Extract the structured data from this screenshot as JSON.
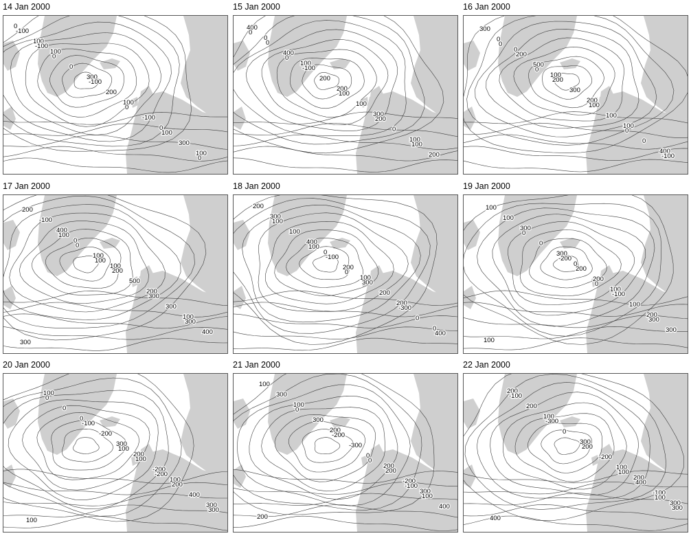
{
  "panels": [
    {
      "date": "14 Jan 2000",
      "labels": [
        "0",
        "100",
        "300",
        "100",
        "0",
        "100",
        "100",
        "0",
        "200",
        "-100",
        "300",
        "-100",
        "0",
        "-100",
        "0",
        "100",
        "0",
        "-100"
      ]
    },
    {
      "date": "15 Jan 2000",
      "labels": [
        "0",
        "100",
        "200",
        "300",
        "100",
        "400",
        "400",
        "200",
        "100",
        "0",
        "200",
        "0",
        "-100",
        "100",
        "200",
        "100",
        "0",
        "0"
      ]
    },
    {
      "date": "16 Jan 2000",
      "labels": [
        "0",
        "100",
        "200",
        "100",
        "400",
        "0",
        "500",
        "300",
        "100",
        "0",
        "300",
        "200",
        "200",
        "100",
        "0",
        "-100",
        "0",
        "0"
      ]
    },
    {
      "date": "17 Jan 2000",
      "labels": [
        "0",
        "100",
        "200",
        "100",
        "300",
        "400",
        "100",
        "500",
        "300",
        "400",
        "-100",
        "0",
        "200",
        "300",
        "300",
        "200",
        "100",
        "100"
      ]
    },
    {
      "date": "18 Jan 2000",
      "labels": [
        "0",
        "100",
        "200",
        "0",
        "300",
        "400",
        "200",
        "200",
        "0",
        "200",
        "100",
        "-100",
        "300",
        "-300",
        "400",
        "100",
        "100",
        "0"
      ]
    },
    {
      "date": "19 Jan 2000",
      "labels": [
        "0",
        "100",
        "200",
        "100",
        "300",
        "300",
        "200",
        "100",
        "300",
        "100",
        "0",
        "200",
        "-100",
        "300",
        "100",
        "0",
        "-200",
        "0"
      ]
    },
    {
      "date": "20 Jan 2000",
      "labels": [
        "200",
        "100",
        "300",
        "100",
        "0",
        "300",
        "-200",
        "400",
        "100",
        "0",
        "-200",
        "100",
        "200",
        "300",
        "0",
        "-100",
        "100",
        "-200"
      ]
    },
    {
      "date": "21 Jan 2000",
      "labels": [
        "200",
        "300",
        "200",
        "100",
        "200",
        "0",
        "-200",
        "400",
        "300",
        "300",
        "-300",
        "200",
        "100",
        "100",
        "0",
        "-200",
        "0",
        "-100"
      ]
    },
    {
      "date": "22 Jan 2000",
      "labels": [
        "200",
        "300",
        "200",
        "100",
        "300",
        "100",
        "-100",
        "400",
        "200",
        "0",
        "-200",
        "400",
        "300",
        "-100",
        "-300",
        "200",
        "100",
        "100"
      ]
    }
  ]
}
